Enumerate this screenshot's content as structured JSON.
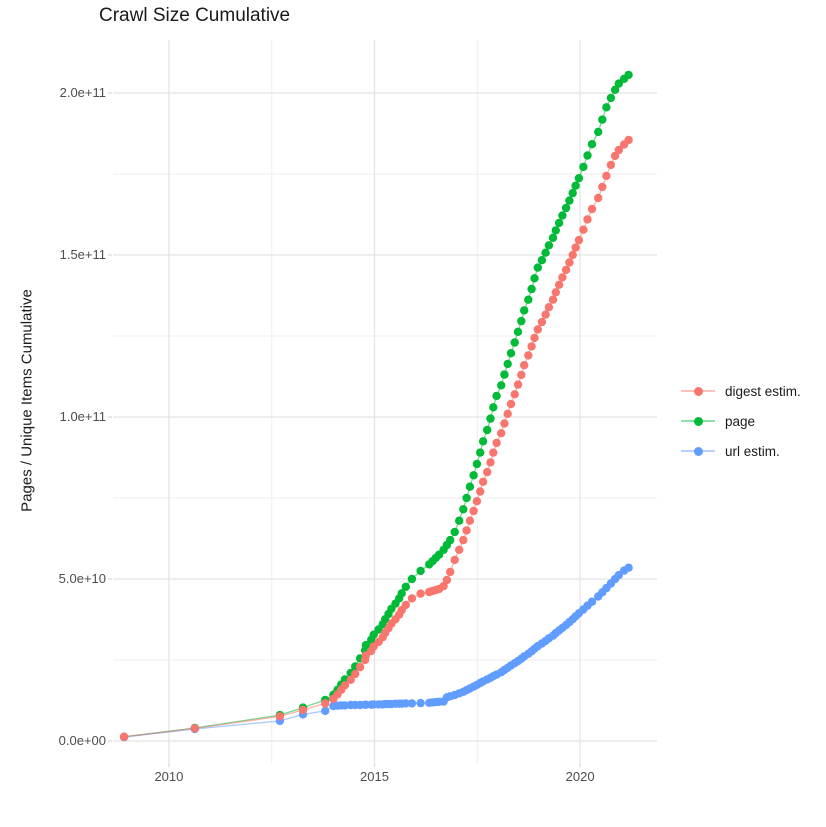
{
  "title": "Crawl Size Cumulative",
  "chart_data": {
    "type": "line",
    "title": "Crawl Size Cumulative",
    "xlabel": "",
    "ylabel": "Pages / Unique Items Cumulative",
    "grid": true,
    "legend_position": "right",
    "marker": "point",
    "value_unit": "items; series values are billions (1e9) of pages / unique items",
    "x_tick_labels": [
      "2010",
      "2015",
      "2020"
    ],
    "x_tick_values": [
      2010,
      2015,
      2020
    ],
    "x_minor_ticks": [
      2012.5,
      2017.5
    ],
    "y_tick_labels": [
      "0.0e+00",
      "5.0e+10",
      "1.0e+11",
      "1.5e+11",
      "2.0e+11"
    ],
    "y_tick_values_billions": [
      0,
      50,
      100,
      150,
      200
    ],
    "y_minor_ticks_billions": [
      25,
      75,
      125,
      175
    ],
    "xlim": [
      2008.64,
      2021.87
    ],
    "ylim_billions": [
      0,
      216.36
    ],
    "x": [
      2008.91,
      2010.63,
      2012.7,
      2013.26,
      2013.8,
      2014.0,
      2014.1,
      2014.19,
      2014.28,
      2014.42,
      2014.53,
      2014.65,
      2014.77,
      2014.79,
      2014.92,
      2014.98,
      2015.1,
      2015.2,
      2015.26,
      2015.34,
      2015.41,
      2015.51,
      2015.6,
      2015.66,
      2015.76,
      2015.91,
      2016.12,
      2016.33,
      2016.41,
      2016.49,
      2016.57,
      2016.68,
      2016.76,
      2016.84,
      2016.95,
      2017.06,
      2017.16,
      2017.24,
      2017.32,
      2017.41,
      2017.49,
      2017.57,
      2017.64,
      2017.74,
      2017.82,
      2017.89,
      2017.97,
      2018.08,
      2018.16,
      2018.24,
      2018.32,
      2018.41,
      2018.49,
      2018.57,
      2018.64,
      2018.74,
      2018.82,
      2018.89,
      2018.97,
      2019.07,
      2019.16,
      2019.24,
      2019.34,
      2019.41,
      2019.49,
      2019.57,
      2019.66,
      2019.74,
      2019.82,
      2019.89,
      2019.97,
      2020.08,
      2020.18,
      2020.29,
      2020.44,
      2020.54,
      2020.64,
      2020.75,
      2020.85,
      2020.94,
      2021.07,
      2021.18
    ],
    "series": [
      {
        "name": "digest estim.",
        "color": "#F8766D",
        "values": [
          1.3,
          3.9,
          7.6,
          9.6,
          11.6,
          13.0,
          14.4,
          15.8,
          17.2,
          18.9,
          20.7,
          22.8,
          25.0,
          26.4,
          27.8,
          29.2,
          30.6,
          32.0,
          33.4,
          34.8,
          36.2,
          37.6,
          39.0,
          40.4,
          42.0,
          44.0,
          45.5,
          46.0,
          46.3,
          46.6,
          46.9,
          47.8,
          49.7,
          52.2,
          55.9,
          59.0,
          62.0,
          65.0,
          68.0,
          71.0,
          74.0,
          77.0,
          80.0,
          83.0,
          86.0,
          89.0,
          92.0,
          95.0,
          98.0,
          101.0,
          104.0,
          107.0,
          110.0,
          113.0,
          116.0,
          119.0,
          121.8,
          124.4,
          127.0,
          129.3,
          131.6,
          133.9,
          136.2,
          138.5,
          140.8,
          143.1,
          145.4,
          147.7,
          150.0,
          152.3,
          154.6,
          157.8,
          161.0,
          164.2,
          167.6,
          171.0,
          174.4,
          177.8,
          180.6,
          182.4,
          184.1,
          185.5
        ]
      },
      {
        "name": "page",
        "color": "#00BA38",
        "values": [
          1.3,
          4.0,
          8.0,
          10.3,
          12.7,
          14.3,
          15.8,
          17.4,
          19.0,
          21.0,
          23.0,
          25.5,
          28.0,
          29.6,
          31.2,
          32.8,
          34.4,
          36.0,
          37.6,
          39.2,
          40.8,
          42.4,
          44.0,
          45.6,
          47.6,
          50.0,
          52.5,
          54.5,
          55.5,
          56.5,
          57.5,
          59.0,
          60.5,
          62.0,
          64.5,
          68.0,
          71.5,
          75.0,
          78.5,
          82.0,
          85.5,
          89.0,
          92.5,
          96.0,
          99.5,
          103.0,
          106.5,
          109.8,
          113.1,
          116.4,
          119.7,
          123.0,
          126.3,
          129.6,
          132.9,
          136.2,
          139.5,
          142.8,
          146.1,
          148.4,
          150.7,
          153.0,
          155.3,
          157.6,
          159.9,
          162.2,
          164.5,
          166.8,
          169.1,
          171.4,
          173.7,
          177.2,
          180.7,
          184.2,
          188.0,
          191.8,
          195.6,
          198.5,
          201.0,
          202.9,
          204.4,
          205.6
        ]
      },
      {
        "name": "url estim.",
        "color": "#619CFF",
        "values": [
          1.2,
          3.7,
          6.2,
          8.2,
          9.3,
          10.8,
          10.9,
          11.0,
          11.0,
          11.1,
          11.1,
          11.1,
          11.2,
          11.2,
          11.2,
          11.3,
          11.3,
          11.3,
          11.4,
          11.4,
          11.4,
          11.5,
          11.5,
          11.5,
          11.6,
          11.6,
          11.7,
          11.8,
          11.9,
          12.0,
          12.1,
          12.2,
          13.5,
          13.8,
          14.2,
          14.7,
          15.2,
          15.7,
          16.2,
          16.8,
          17.3,
          17.9,
          18.4,
          19.0,
          19.5,
          20.0,
          20.5,
          21.2,
          21.9,
          22.6,
          23.3,
          24.0,
          24.7,
          25.4,
          26.1,
          26.9,
          27.7,
          28.5,
          29.3,
          30.1,
          30.9,
          31.7,
          32.5,
          33.3,
          34.1,
          34.9,
          35.8,
          36.7,
          37.6,
          38.5,
          39.4,
          40.6,
          41.8,
          43.0,
          44.6,
          45.9,
          47.2,
          48.6,
          50.0,
          51.2,
          52.6,
          53.5
        ]
      }
    ]
  },
  "colors": {
    "grid_major": "#e3e3e3",
    "grid_minor": "#ededed",
    "tick_mark": "#d9d9d9",
    "axis_text": "#4d4d4d",
    "title_text": "#1a1a1a"
  }
}
